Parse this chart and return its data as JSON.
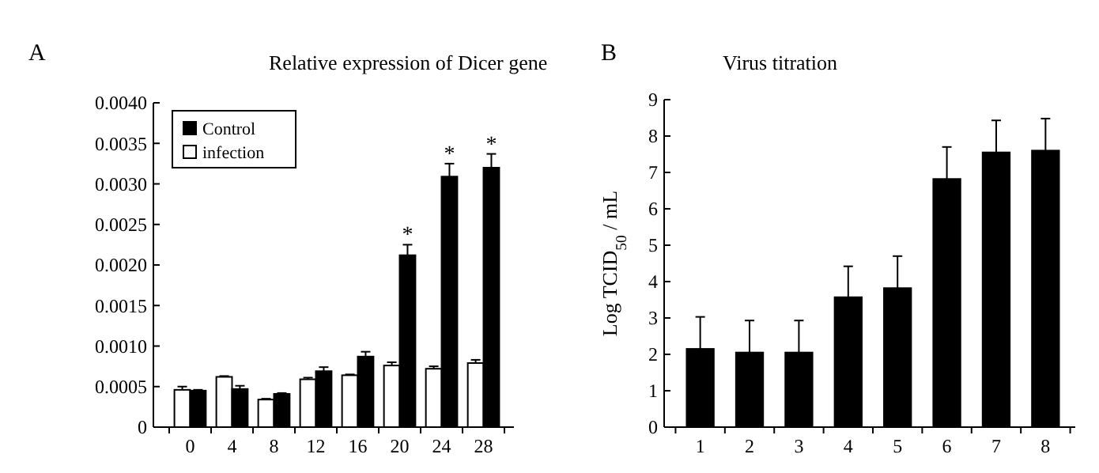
{
  "chart_data": [
    {
      "type": "bar",
      "title": "Relative expression of Dicer gene",
      "categories": [
        "0",
        "4",
        "8",
        "12",
        "16",
        "20",
        "24",
        "28"
      ],
      "series": [
        {
          "name": "infection",
          "color": "#ffffff",
          "values": [
            0.00046,
            0.00062,
            0.00034,
            0.00059,
            0.00064,
            0.00076,
            0.00072,
            0.00079
          ],
          "errors": [
            [
              0.00046,
              0.0005
            ],
            [
              0.00062,
              0.00063
            ],
            [
              0.00034,
              0.00035
            ],
            [
              0.00059,
              0.00061
            ],
            [
              0.00064,
              0.00065
            ],
            [
              0.00076,
              0.0008
            ],
            [
              0.00072,
              0.00075
            ],
            [
              0.00079,
              0.00083
            ]
          ]
        },
        {
          "name": "Control",
          "color": "#000000",
          "values": [
            0.00045,
            0.00047,
            0.00041,
            0.00069,
            0.00087,
            0.00212,
            0.00309,
            0.0032
          ],
          "errors": [
            [
              0.00045,
              0.00046
            ],
            [
              0.00047,
              0.00051
            ],
            [
              0.00041,
              0.00042
            ],
            [
              0.00069,
              0.00074
            ],
            [
              0.00087,
              0.00093
            ],
            [
              0.00212,
              0.00225
            ],
            [
              0.00309,
              0.00325
            ],
            [
              0.0032,
              0.00337
            ]
          ]
        }
      ],
      "ylim": [
        0,
        0.004
      ],
      "yticks": [
        0,
        0.0005,
        {
          "value": 0.001,
          "label": "0.0010"
        },
        0.0015,
        {
          "value": 0.002,
          "label": "0.0020"
        },
        0.0025,
        {
          "value": 0.003,
          "label": "0.0030"
        },
        0.0035,
        {
          "value": 0.004,
          "label": "0.0040"
        }
      ],
      "legend": "top left",
      "grid": false,
      "annotations": [
        "A",
        {
          "text": "*",
          "x": "20",
          "y": 0.00225
        },
        {
          "text": "*",
          "x": "24",
          "y": 0.00325
        },
        {
          "text": "*",
          "x": "28",
          "y": 0.00337
        }
      ]
    },
    {
      "type": "bar",
      "title": "Virus titration",
      "ylabel": "Log TCID$_{50}$ / mL",
      "categories": [
        "1",
        "2",
        "3",
        "4",
        "5",
        "6",
        "7",
        "8"
      ],
      "values": [
        2.15,
        2.05,
        2.05,
        3.57,
        3.82,
        6.82,
        7.55,
        7.6
      ],
      "color": "#000000",
      "errors": [
        [
          2.15,
          3.03
        ],
        [
          2.05,
          2.93
        ],
        [
          2.05,
          2.93
        ],
        [
          3.57,
          4.42
        ],
        [
          3.82,
          4.7
        ],
        [
          6.82,
          7.7
        ],
        [
          7.55,
          8.43
        ],
        [
          7.6,
          8.48
        ]
      ],
      "ylim": [
        0,
        9
      ],
      "yticks": [
        0,
        1,
        2,
        3,
        4,
        5,
        6,
        7,
        8,
        9
      ],
      "legend": false,
      "grid": false,
      "annotations": [
        "B"
      ]
    }
  ]
}
